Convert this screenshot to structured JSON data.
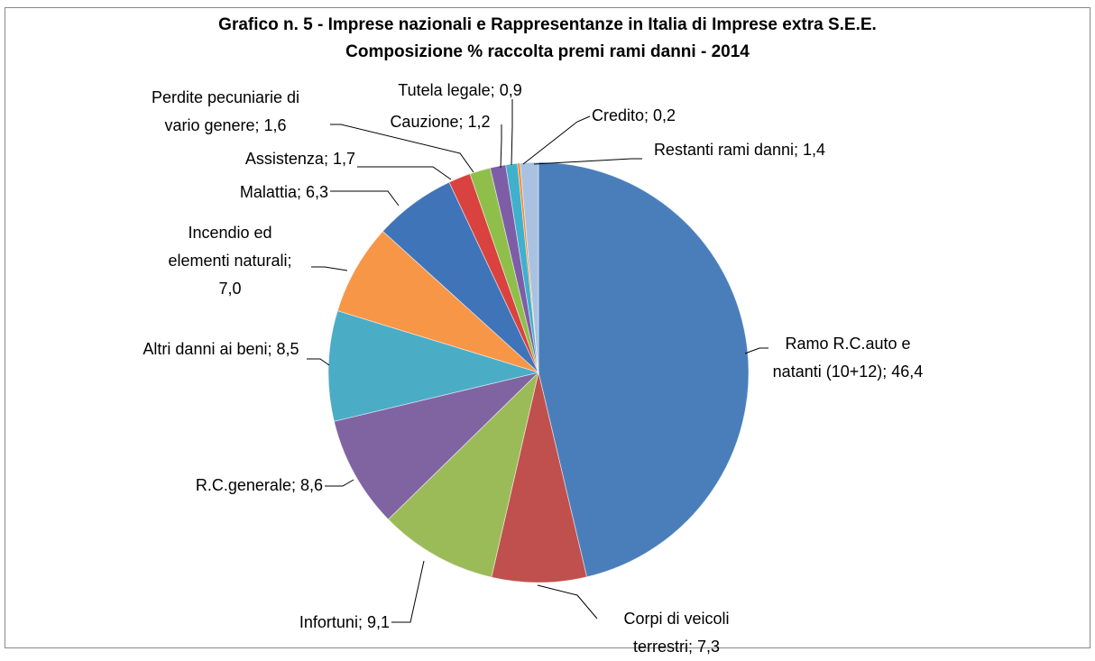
{
  "chart_data": {
    "type": "pie",
    "title": "Grafico n. 5 - Imprese nazionali e Rappresentanze in Italia di Imprese extra S.E.E.",
    "subtitle": "Composizione % raccolta premi rami danni - 2014",
    "categories": [
      "Ramo R.C.auto e natanti (10+12)",
      "Corpi di veicoli terrestri",
      "Infortuni",
      "R.C.generale",
      "Altri danni ai beni",
      "Incendio ed elementi naturali",
      "Malattia",
      "Assistenza",
      "Perdite pecuniarie di vario genere",
      "Cauzione",
      "Tutela legale",
      "Credito",
      "Restanti rami danni"
    ],
    "values": [
      46.4,
      7.3,
      9.1,
      8.6,
      8.5,
      7.0,
      6.3,
      1.7,
      1.6,
      1.2,
      0.9,
      0.2,
      1.4
    ],
    "value_labels": [
      "46,4",
      "7,3",
      "9,1",
      "8,6",
      "8,5",
      "7,0",
      "6,3",
      "1,7",
      "1,6",
      "1,2",
      "0,9",
      "0,2",
      "1,4"
    ],
    "label_separator": "; ",
    "colors": [
      "#4a7ebb",
      "#c0504d",
      "#9bbb59",
      "#8064a2",
      "#4bacc6",
      "#f79646",
      "#3f74b8",
      "#d9423e",
      "#8fbf4a",
      "#7d5ea6",
      "#40b0cc",
      "#f08a2a",
      "#a9c2e2"
    ]
  }
}
